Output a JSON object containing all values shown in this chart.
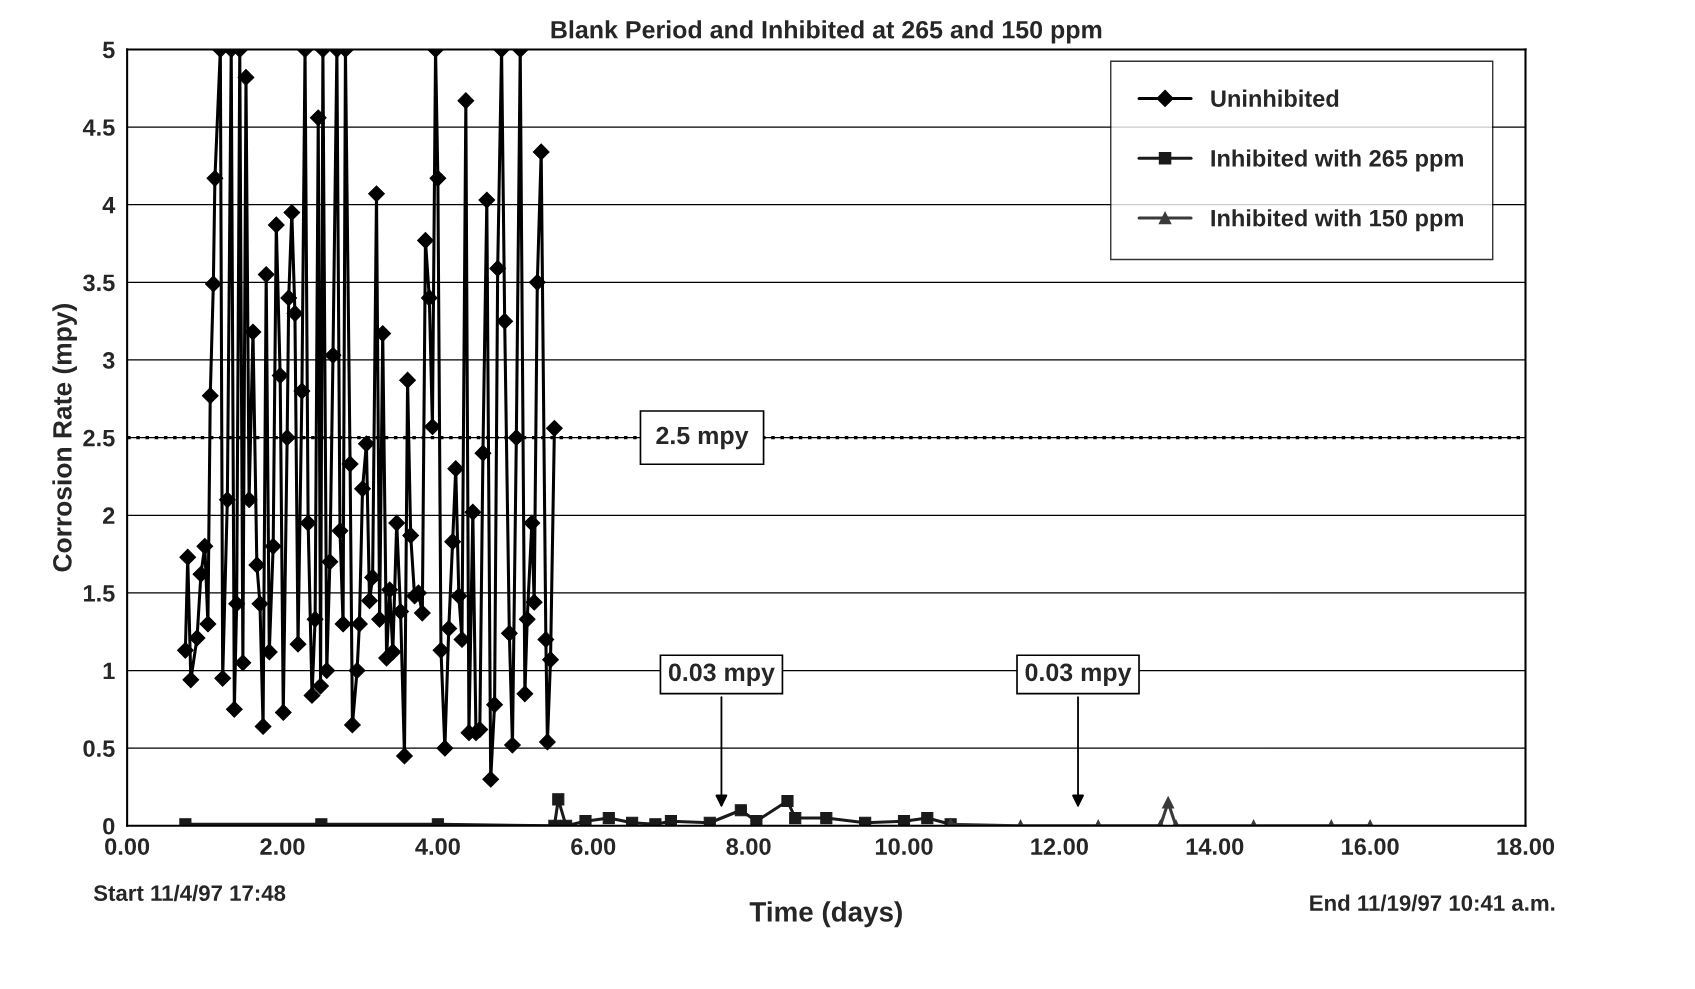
{
  "chart_data": {
    "type": "line",
    "title": "Blank Period and Inhibited at 265 and 150 ppm",
    "xlabel": "Time (days)",
    "ylabel": "Corrosion Rate (mpy)",
    "xlim": [
      0,
      18
    ],
    "xticks": [
      {
        "value": 0,
        "label": "0.00"
      },
      {
        "value": 2,
        "label": "2.00"
      },
      {
        "value": 4,
        "label": "4.00"
      },
      {
        "value": 6,
        "label": "6.00"
      },
      {
        "value": 8,
        "label": "8.00"
      },
      {
        "value": 10,
        "label": "10.00"
      },
      {
        "value": 12,
        "label": "12.00"
      },
      {
        "value": 14,
        "label": "14.00"
      },
      {
        "value": 16,
        "label": "16.00"
      },
      {
        "value": 18,
        "label": "18.00"
      }
    ],
    "ylim": [
      0,
      5
    ],
    "yticks": [
      0,
      0.5,
      1,
      1.5,
      2,
      2.5,
      3,
      3.5,
      4,
      4.5,
      5
    ],
    "grid": "y",
    "legend": "top right",
    "series": [
      {
        "name": "Uninhibited",
        "color": "#000000",
        "marker": "diamond",
        "x": [
          0.75,
          0.78,
          0.82,
          0.9,
          0.95,
          1.0,
          1.04,
          1.07,
          1.11,
          1.13,
          1.2,
          1.23,
          1.29,
          1.34,
          1.38,
          1.41,
          1.45,
          1.49,
          1.53,
          1.57,
          1.62,
          1.67,
          1.71,
          1.75,
          1.79,
          1.83,
          1.88,
          1.92,
          1.97,
          2.01,
          2.06,
          2.08,
          2.12,
          2.16,
          2.2,
          2.25,
          2.29,
          2.33,
          2.38,
          2.42,
          2.46,
          2.49,
          2.52,
          2.57,
          2.61,
          2.65,
          2.7,
          2.74,
          2.78,
          2.81,
          2.87,
          2.9,
          2.96,
          2.99,
          3.03,
          3.08,
          3.12,
          3.16,
          3.21,
          3.25,
          3.29,
          3.34,
          3.38,
          3.42,
          3.47,
          3.52,
          3.57,
          3.61,
          3.65,
          3.7,
          3.75,
          3.8,
          3.84,
          3.89,
          3.93,
          3.97,
          4.0,
          4.04,
          4.09,
          4.14,
          4.19,
          4.23,
          4.27,
          4.31,
          4.36,
          4.4,
          4.45,
          4.49,
          4.54,
          4.58,
          4.63,
          4.68,
          4.73,
          4.77,
          4.82,
          4.86,
          4.92,
          4.96,
          5.01,
          5.06,
          5.12,
          5.15,
          5.21,
          5.24,
          5.28,
          5.33,
          5.39,
          5.41,
          5.45,
          5.5
        ],
        "values": [
          1.13,
          1.73,
          0.94,
          1.21,
          1.62,
          1.8,
          1.3,
          2.77,
          3.49,
          4.17,
          5,
          0.95,
          2.1,
          5,
          0.75,
          1.43,
          5,
          1.05,
          4.82,
          2.1,
          3.18,
          1.68,
          1.43,
          0.64,
          3.55,
          1.12,
          1.8,
          3.87,
          2.9,
          0.73,
          2.5,
          3.4,
          3.95,
          3.3,
          1.17,
          2.8,
          5,
          1.95,
          0.84,
          1.33,
          4.56,
          0.9,
          5,
          1.0,
          1.7,
          3.03,
          5,
          1.9,
          1.3,
          5,
          2.33,
          0.65,
          1.0,
          1.3,
          2.17,
          2.46,
          1.45,
          1.6,
          4.07,
          1.33,
          3.17,
          1.08,
          1.52,
          1.12,
          1.95,
          1.38,
          0.45,
          2.87,
          1.87,
          1.48,
          1.5,
          1.37,
          3.77,
          3.4,
          2.57,
          5,
          4.17,
          1.13,
          0.5,
          1.27,
          1.83,
          2.3,
          1.48,
          1.2,
          4.67,
          0.6,
          2.02,
          0.6,
          0.62,
          2.4,
          4.03,
          0.3,
          0.78,
          3.59,
          5,
          3.25,
          1.24,
          0.52,
          2.5,
          5,
          0.85,
          1.33,
          1.95,
          1.44,
          3.5,
          4.34,
          1.2,
          0.54,
          1.07,
          2.56
        ]
      },
      {
        "name": "Inhibited with 265 ppm",
        "color": "#1a1a1a",
        "marker": "square",
        "x": [
          0.75,
          2.5,
          4.0,
          5.5,
          5.55,
          5.65,
          5.9,
          6.2,
          6.5,
          6.8,
          7.0,
          7.5,
          7.9,
          8.1,
          8.5,
          8.6,
          9.0,
          9.5,
          10.0,
          10.3,
          10.6
        ],
        "values": [
          0.01,
          0.01,
          0.01,
          0.0,
          0.17,
          0.0,
          0.03,
          0.05,
          0.02,
          0.01,
          0.03,
          0.02,
          0.1,
          0.03,
          0.16,
          0.05,
          0.05,
          0.02,
          0.03,
          0.05,
          0.01
        ]
      },
      {
        "name": "Inhibited with 150 ppm",
        "color": "#3a3a3a",
        "marker": "triangle",
        "x": [
          10.6,
          11.5,
          12.5,
          13.3,
          13.4,
          13.5,
          14.5,
          15.5,
          16.0
        ],
        "values": [
          0.01,
          0.0,
          0.0,
          0.0,
          0.15,
          0.0,
          0.0,
          0.0,
          0.0
        ]
      }
    ],
    "ref_lines": [
      {
        "axis": "y",
        "value": 2.5,
        "label": "2.5 mpy",
        "line_style": "dotted",
        "color": "#000000"
      }
    ],
    "annotations": [
      "0.03 mpy",
      "0.03 mpy",
      "Start 11/4/97 17:48",
      "End 11/19/97 10:41 a.m."
    ]
  }
}
